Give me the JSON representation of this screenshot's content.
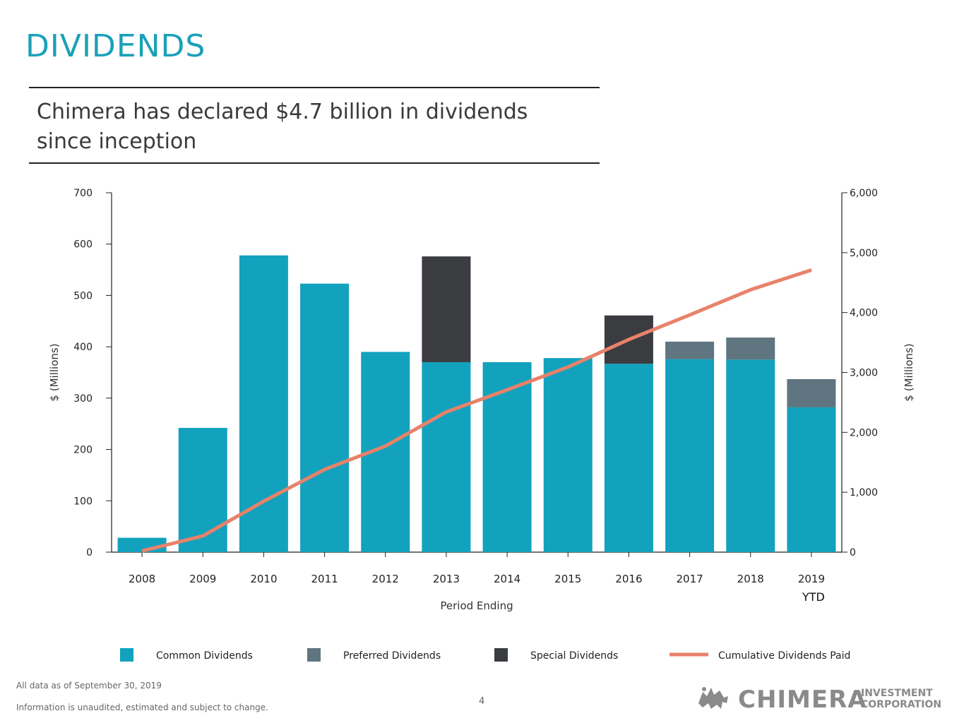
{
  "header": {
    "title": "DIVIDENDS",
    "subtitle_line1": "Chimera has declared $4.7 billion in dividends",
    "subtitle_line2": "since inception"
  },
  "colors": {
    "title": "#1aa1b8",
    "common": "#12a2bd",
    "preferred": "#5f7580",
    "special": "#3a3c40",
    "cumulative": "#e8826a"
  },
  "chart_data": {
    "type": "bar",
    "stacked": true,
    "categories": [
      "2008",
      "2009",
      "2010",
      "2011",
      "2012",
      "2013",
      "2014",
      "2015",
      "2016",
      "2017",
      "2018",
      "2019"
    ],
    "category_sublabels": [
      "",
      "",
      "",
      "",
      "",
      "",
      "",
      "",
      "",
      "",
      "",
      "YTD"
    ],
    "series": [
      {
        "name": "Common Dividends",
        "values": [
          28,
          242,
          578,
          523,
          390,
          370,
          370,
          378,
          367,
          376,
          375,
          282
        ]
      },
      {
        "name": "Preferred Dividends",
        "values": [
          0,
          0,
          0,
          0,
          0,
          0,
          0,
          0,
          0,
          34,
          43,
          55
        ]
      },
      {
        "name": "Special Dividends",
        "values": [
          0,
          0,
          0,
          0,
          0,
          206,
          0,
          0,
          94,
          0,
          0,
          0
        ]
      }
    ],
    "line_series": {
      "name": "Cumulative Dividends Paid",
      "axis": "right",
      "values": [
        20,
        270,
        850,
        1380,
        1770,
        2340,
        2710,
        3090,
        3550,
        3960,
        4380,
        4710
      ]
    },
    "xlabel": "Period Ending",
    "ylabel_left": "$ (Millions)",
    "ylabel_right": "$ (Millions)",
    "ylim_left": [
      0,
      700
    ],
    "yticks_left": [
      0,
      100,
      200,
      300,
      400,
      500,
      600,
      700
    ],
    "ytick_labels_left": [
      "0",
      "100",
      "200",
      "300",
      "400",
      "500",
      "600",
      "700"
    ],
    "ylim_right": [
      0,
      6000
    ],
    "yticks_right": [
      0,
      1000,
      2000,
      3000,
      4000,
      5000,
      6000
    ],
    "ytick_labels_right": [
      "0",
      "1,000",
      "2,000",
      "3,000",
      "4,000",
      "5,000",
      "6,000"
    ],
    "legend": [
      "Common Dividends",
      "Preferred Dividends",
      "Special Dividends",
      "Cumulative Dividends Paid"
    ],
    "legend_position": "bottom"
  },
  "footer": {
    "note1": "All data as of September 30, 2019",
    "note2": "Information is unaudited, estimated and subject to change.",
    "page_number": "4",
    "logo_main": "CHIMERA",
    "logo_sub1": "INVESTMENT",
    "logo_sub2": "CORPORATION"
  }
}
